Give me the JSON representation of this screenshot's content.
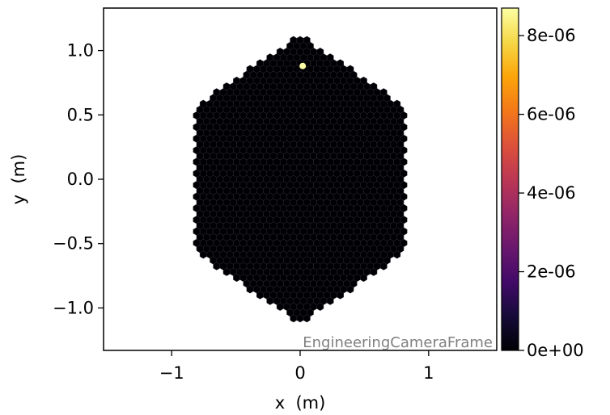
{
  "chart_data": {
    "type": "scatter",
    "title": "",
    "xlabel": "x  (m)",
    "ylabel": "y  (m)",
    "xlim": [
      -1.53,
      1.53
    ],
    "ylim": [
      -1.33,
      1.33
    ],
    "xticks": [
      {
        "value": -1,
        "label": "−1"
      },
      {
        "value": 0,
        "label": "0"
      },
      {
        "value": 1,
        "label": "1"
      }
    ],
    "yticks": [
      {
        "value": -1.0,
        "label": "−1.0"
      },
      {
        "value": -0.5,
        "label": "−0.5"
      },
      {
        "value": 0.0,
        "label": "0.0"
      },
      {
        "value": 0.5,
        "label": "0.5"
      },
      {
        "value": 1.0,
        "label": "1.0"
      }
    ],
    "pixel_array": {
      "shape": "hexagon",
      "extent_x": [
        -1.1,
        1.1
      ],
      "extent_y": [
        -1.18,
        1.18
      ],
      "pixel_value": 0,
      "hot_pixel": {
        "x": 0.02,
        "y": 0.88,
        "value": 8.7e-06
      }
    },
    "colorbar": {
      "colormap": "inferno",
      "vmin": 0,
      "vmax": 8.7e-06,
      "ticks": [
        {
          "value": 0,
          "label": "0e+00"
        },
        {
          "value": 2e-06,
          "label": "2e-06"
        },
        {
          "value": 4e-06,
          "label": "4e-06"
        },
        {
          "value": 6e-06,
          "label": "6e-06"
        },
        {
          "value": 8e-06,
          "label": "8e-06"
        }
      ]
    },
    "annotation": "EngineeringCameraFrame",
    "grid": false,
    "legend": "none"
  },
  "colors": {
    "pixel_fill": "#000004",
    "pixel_edge": "#2a2a33",
    "hot_pixel": "#fcffa4",
    "annotation": "#808080"
  }
}
